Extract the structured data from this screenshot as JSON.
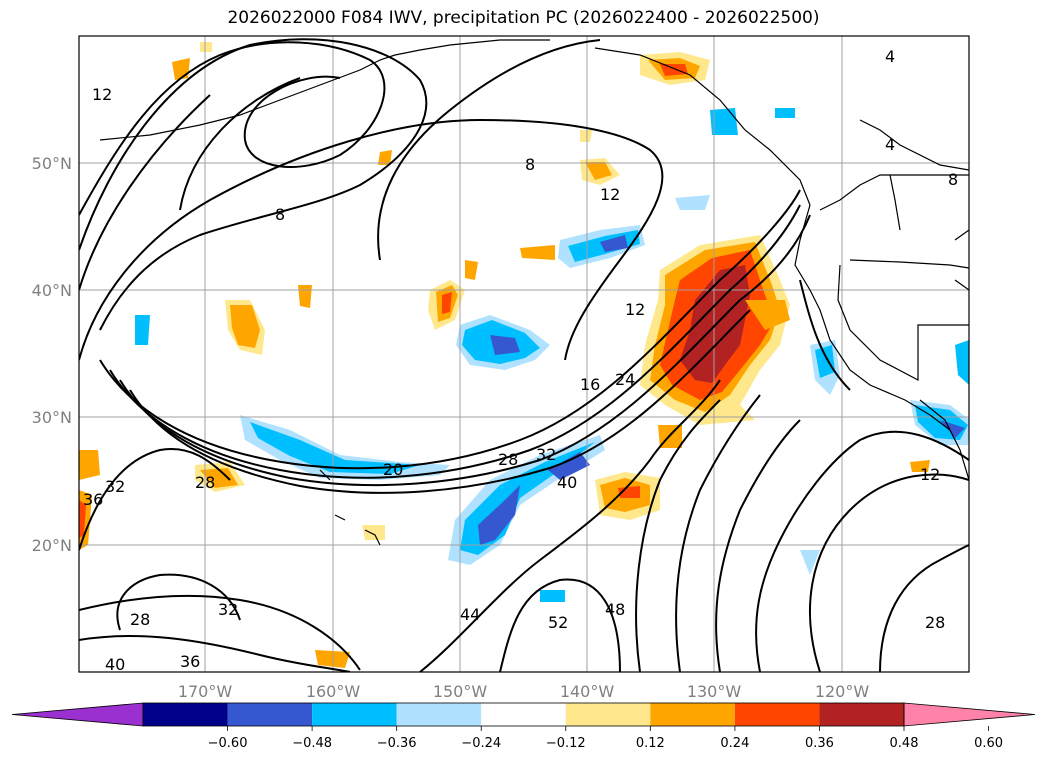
{
  "title": "2026022000 F084 IWV, precipitation PC (2026022400 - 2026022500)",
  "latitudes": [
    "50°N",
    "40°N",
    "30°N",
    "20°N"
  ],
  "longitudes": [
    "170°W",
    "160°W",
    "150°W",
    "140°W",
    "130°W",
    "120°W"
  ],
  "colorbar": {
    "ticks": [
      "−0.60",
      "−0.48",
      "−0.36",
      "−0.24",
      "−0.12",
      "0.12",
      "0.24",
      "0.36",
      "0.48",
      "0.60"
    ],
    "colors": [
      "#9b30d0",
      "#00008b",
      "#3557cf",
      "#00bfff",
      "#b0e2ff",
      "#ffffff",
      "#ffe88c",
      "#ffa500",
      "#ff4500",
      "#b22222",
      "#ff82a8"
    ]
  },
  "contour_labels": [
    "4",
    "4",
    "8",
    "8",
    "8",
    "12",
    "12",
    "12",
    "12",
    "16",
    "24",
    "20",
    "28",
    "32",
    "40",
    "28",
    "36",
    "32",
    "28",
    "32",
    "44",
    "52",
    "48",
    "28",
    "36",
    "40",
    "12"
  ],
  "colors": {
    "contour": "#000000",
    "grid": "#a0a0a0",
    "coast": "#000000"
  }
}
